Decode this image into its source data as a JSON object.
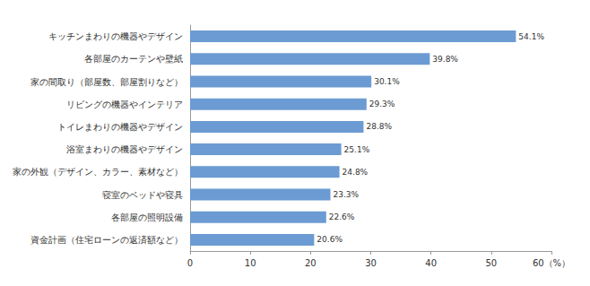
{
  "chart_data": {
    "type": "bar",
    "orientation": "horizontal",
    "categories": [
      "キッチンまわりの機器やデザイン",
      "各部屋のカーテンや壁紙",
      "家の間取り（部屋数、部屋割りなど）",
      "リビングの機器やインテリア",
      "トイレまわりの機器やデザイン",
      "浴室まわりの機器やデザイン",
      "家の外観（デザイン、カラー、素材など）",
      "寝室のベッドや寝具",
      "各部屋の照明設備",
      "資金計画（住宅ローンの返済額など）"
    ],
    "values": [
      54.1,
      39.8,
      30.1,
      29.3,
      28.8,
      25.1,
      24.8,
      23.3,
      22.6,
      20.6
    ],
    "value_labels": [
      "54.1%",
      "39.8%",
      "30.1%",
      "29.3%",
      "28.8%",
      "25.1%",
      "24.8%",
      "23.3%",
      "22.6%",
      "20.6%"
    ],
    "color": "#6b9bd2",
    "xlim": [
      0,
      60
    ],
    "xticks": [
      0,
      10,
      20,
      30,
      40,
      50,
      {
        "value": 60,
        "label": "60（%）"
      }
    ],
    "grid": false,
    "data_labels": true
  }
}
